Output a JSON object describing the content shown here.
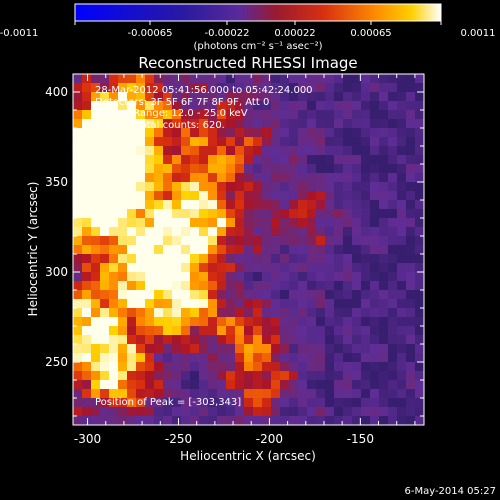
{
  "chart_data": {
    "type": "heatmap",
    "title": "Reconstructed RHESSI Image",
    "xlabel": "Heliocentric X (arcsec)",
    "ylabel": "Heliocentric Y (arcsec)",
    "xlim": [
      -308,
      -115
    ],
    "ylim": [
      215,
      410
    ],
    "xticks": [
      -300,
      -250,
      -200,
      -150
    ],
    "yticks": [
      250,
      300,
      350,
      400
    ],
    "colorbar": {
      "ticks": [
        "-0.0011",
        "-0.00065",
        "-0.00022",
        "0.00022",
        "0.00065",
        "0.0011"
      ],
      "label": "(photons cm⁻² s⁻¹ asec⁻²)",
      "range": [
        -0.0011,
        0.0011
      ]
    },
    "annotations": [
      "28-Mar-2012 05:41:56.000 to 05:42:24.000",
      "Detectors: 3F 5F 6F 7F 8F 9F, Att 0",
      "Energy Range: 12.0 - 25.0 keV",
      "Clean    Total counts: 620."
    ],
    "peak_label": "Position of Peak = [-303,343]",
    "peak": [
      -303,
      343
    ],
    "colormap": [
      "#0000ff",
      "#3a1a8c",
      "#6a2fa0",
      "#b0202a",
      "#e04010",
      "#ff8a00",
      "#ffd000",
      "#ffffff"
    ]
  },
  "footer": {
    "date": "6-May-2014 05:27"
  }
}
